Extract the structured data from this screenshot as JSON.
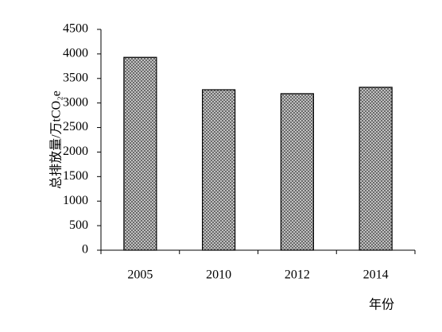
{
  "chart_data": {
    "type": "bar",
    "categories": [
      "2005",
      "2010",
      "2012",
      "2014"
    ],
    "values": [
      3930,
      3270,
      3190,
      3320
    ],
    "ylim": [
      0,
      4500
    ],
    "yticks": [
      0,
      500,
      1000,
      1500,
      2000,
      2500,
      3000,
      3500,
      4000,
      4500
    ],
    "y_label": "总排放量/万tCO₂e",
    "x_label": "年份",
    "grid": false
  }
}
